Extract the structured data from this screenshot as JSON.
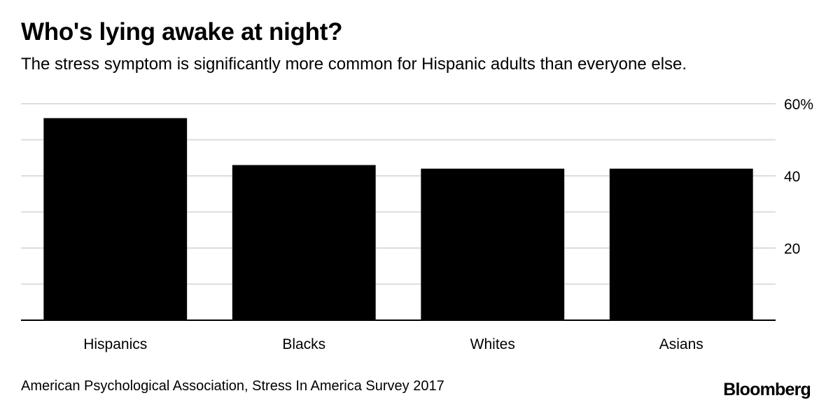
{
  "chart_data": {
    "type": "bar",
    "title": "Who's lying awake at night?",
    "subtitle": "The stress symptom is significantly more common for Hispanic adults than everyone else.",
    "categories": [
      "Hispanics",
      "Blacks",
      "Whites",
      "Asians"
    ],
    "values": [
      56,
      43,
      42,
      42
    ],
    "xlabel": "",
    "ylabel": "",
    "ylim": [
      0,
      60
    ],
    "yticks": [
      20,
      40,
      60
    ],
    "ytick_labels": [
      "20",
      "40",
      "60%"
    ],
    "grid": true,
    "y_axis_position": "right",
    "bar_color": "#000000",
    "grid_color": "#dddddd"
  },
  "source": "American Psychological Association, Stress In America Survey 2017",
  "logo": "Bloomberg"
}
